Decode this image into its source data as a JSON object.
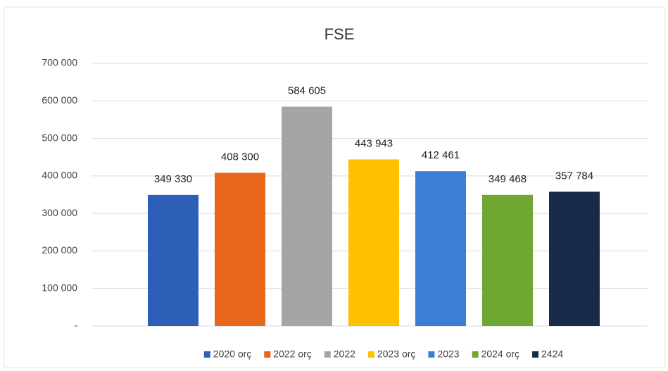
{
  "chart_data": {
    "type": "bar",
    "title": "FSE",
    "categories": [
      "2020 orç",
      "2022 orç",
      "2022",
      "2023 orç",
      "2023",
      "2024 orç",
      "2424"
    ],
    "values": [
      349330,
      408300,
      584605,
      443943,
      412461,
      349468,
      357784
    ],
    "value_labels": [
      "349 330",
      "408 300",
      "584 605",
      "443 943",
      "412 461",
      "349 468",
      "357 784"
    ],
    "colors": [
      "#2e5fb8",
      "#e8661c",
      "#a5a5a5",
      "#ffc000",
      "#3a7fd4",
      "#6fa830",
      "#1a2a4a"
    ],
    "ylim": [
      0,
      700000
    ],
    "yticks": [
      {
        "value": 0,
        "label": "-"
      },
      {
        "value": 100000,
        "label": "100 000"
      },
      {
        "value": 200000,
        "label": "200 000"
      },
      {
        "value": 300000,
        "label": "300 000"
      },
      {
        "value": 400000,
        "label": "400 000"
      },
      {
        "value": 500000,
        "label": "500 000"
      },
      {
        "value": 600000,
        "label": "600 000"
      },
      {
        "value": 700000,
        "label": "700 000"
      }
    ],
    "grid": true,
    "legend": "bottom"
  }
}
